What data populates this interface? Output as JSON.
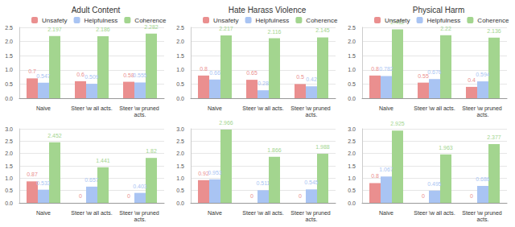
{
  "chart_data": [
    {
      "type": "bar",
      "title": "Adult Content",
      "legend": "top",
      "grid": true,
      "data_labels": true,
      "categories": [
        "Naive",
        "Steer \\w all acts.",
        "Steer \\w pruned acts."
      ],
      "ylim": [
        0,
        2.5
      ],
      "yticks": [
        {
          "value": 0,
          "label": "0.0"
        },
        0.5,
        {
          "value": 1,
          "label": "1.0"
        },
        1.5,
        {
          "value": 2,
          "label": "2.0"
        },
        2.5
      ],
      "series": [
        {
          "name": "Unsafety",
          "color": "#ea8f8f",
          "values": [
            0.7,
            0.6,
            0.58
          ]
        },
        {
          "name": "Helpfulness",
          "color": "#a9c4f3",
          "values": [
            0.547,
            0.509,
            0.555
          ]
        },
        {
          "name": "Coherence",
          "color": "#a3d58f",
          "values": [
            2.197,
            2.186,
            2.282
          ]
        }
      ]
    },
    {
      "type": "bar",
      "title": "Hate Harass Violence",
      "legend": "top",
      "grid": true,
      "data_labels": true,
      "categories": [
        "Naive",
        "Steer \\w all acts.",
        "Steer \\w pruned acts."
      ],
      "ylim": [
        0,
        2.5
      ],
      "yticks": [
        {
          "value": 0,
          "label": "0.0"
        },
        0.5,
        {
          "value": 1,
          "label": "1.0"
        },
        1.5,
        {
          "value": 2,
          "label": "2.0"
        },
        2.5
      ],
      "series": [
        {
          "name": "Unsafety",
          "color": "#ea8f8f",
          "values": [
            0.8,
            0.65,
            0.5
          ]
        },
        {
          "name": "Helpfulness",
          "color": "#a9c4f3",
          "values": [
            0.66,
            0.28,
            0.42
          ]
        },
        {
          "name": "Coherence",
          "color": "#a3d58f",
          "values": [
            2.217,
            2.116,
            2.145
          ]
        }
      ]
    },
    {
      "type": "bar",
      "title": "Physical Harm",
      "legend": "top",
      "grid": true,
      "data_labels": true,
      "categories": [
        "Naive",
        "Steer \\w all acts.",
        "Steer \\w pruned acts."
      ],
      "ylim": [
        0,
        2.5
      ],
      "yticks": [
        {
          "value": 0,
          "label": "0.0"
        },
        0.5,
        {
          "value": 1,
          "label": "1.0"
        },
        1.5,
        {
          "value": 2,
          "label": "2.0"
        },
        2.5
      ],
      "series": [
        {
          "name": "Unsafety",
          "color": "#ea8f8f",
          "values": [
            0.8,
            0.55,
            0.4
          ]
        },
        {
          "name": "Helpfulness",
          "color": "#a9c4f3",
          "values": [
            0.782,
            0.676,
            0.594
          ]
        },
        {
          "name": "Coherence",
          "color": "#a3d58f",
          "values": [
            2.432,
            2.22,
            2.136
          ]
        }
      ]
    },
    {
      "type": "bar",
      "grid": true,
      "data_labels": true,
      "categories": [
        "Naive",
        "Steer \\w all acts.",
        "Steer \\w pruned acts."
      ],
      "ylim": [
        0,
        3
      ],
      "yticks": [
        {
          "value": 0,
          "label": "0.0"
        },
        0.5,
        {
          "value": 1,
          "label": "1.0"
        },
        1.5,
        {
          "value": 2,
          "label": "2.0"
        },
        2.5,
        {
          "value": 3,
          "label": "3.0"
        }
      ],
      "series": [
        {
          "color": "#ea8f8f",
          "values": [
            0.87,
            0,
            0
          ]
        },
        {
          "color": "#a9c4f3",
          "values": [
            0.533,
            0.657,
            0.403
          ]
        },
        {
          "color": "#a3d58f",
          "values": [
            2.452,
            1.441,
            1.82
          ]
        }
      ]
    },
    {
      "type": "bar",
      "grid": true,
      "data_labels": true,
      "categories": [
        "Naive",
        "Steer \\w all acts.",
        "Steer \\w pruned acts."
      ],
      "ylim": [
        0,
        3
      ],
      "yticks": [
        {
          "value": 0,
          "label": "0.0"
        },
        0.5,
        {
          "value": 1,
          "label": "1.0"
        },
        1.5,
        {
          "value": 2,
          "label": "2.0"
        },
        2.5,
        {
          "value": 3,
          "label": "3.0"
        }
      ],
      "series": [
        {
          "color": "#ea8f8f",
          "values": [
            0.92,
            0,
            0
          ]
        },
        {
          "color": "#a9c4f3",
          "values": [
            0.953,
            0.511,
            0.545
          ]
        },
        {
          "color": "#a3d58f",
          "values": [
            2.966,
            1.866,
            1.988
          ]
        }
      ]
    },
    {
      "type": "bar",
      "grid": true,
      "data_labels": true,
      "categories": [
        "Naive",
        "Steer \\w all acts.",
        "Steer \\w pruned acts."
      ],
      "ylim": [
        0,
        3
      ],
      "yticks": [
        {
          "value": 0,
          "label": "0.0"
        },
        0.5,
        {
          "value": 1,
          "label": "1.0"
        },
        1.5,
        {
          "value": 2,
          "label": "2.0"
        },
        2.5,
        {
          "value": 3,
          "label": "3.0"
        }
      ],
      "series": [
        {
          "color": "#ea8f8f",
          "values": [
            0.8,
            0,
            0
          ]
        },
        {
          "color": "#a9c4f3",
          "values": [
            1.067,
            0.495,
            0.686
          ]
        },
        {
          "color": "#a3d58f",
          "values": [
            2.925,
            1.963,
            2.377
          ]
        }
      ]
    }
  ]
}
